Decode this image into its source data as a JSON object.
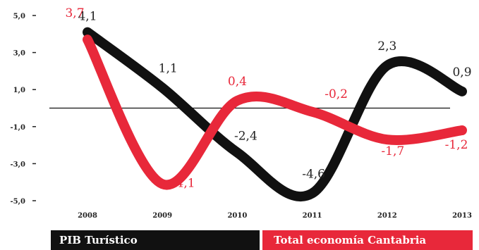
{
  "chart_data": {
    "type": "line",
    "categories": [
      "2008",
      "2009",
      "2010",
      "2011",
      "2012",
      "2013"
    ],
    "yticks": [
      "5,0",
      "3,0",
      "1,0",
      "-1,0",
      "-3,0",
      "-5,0"
    ],
    "ylim": [
      -5.0,
      5.0
    ],
    "series": [
      {
        "name": "PIB Turístico",
        "color": "#111111",
        "values": [
          4.1,
          1.1,
          -2.4,
          -4.6,
          2.3,
          0.9
        ],
        "labels": [
          "4,1",
          "1,1",
          "-2,4",
          "-4,6",
          "2,3",
          "0,9"
        ]
      },
      {
        "name": "Total economía Cantabria",
        "color": "#e8283a",
        "values": [
          3.7,
          -4.1,
          0.4,
          -0.2,
          -1.7,
          -1.2
        ],
        "labels": [
          "3,7",
          "-4,1",
          "0,4",
          "-0,2",
          "-1,7",
          "-1,2"
        ]
      }
    ],
    "legend_placement": "bottom",
    "zero_line": true,
    "grid": false
  }
}
